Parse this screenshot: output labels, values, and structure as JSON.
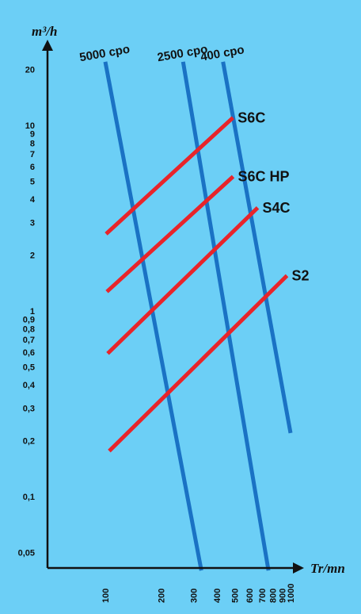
{
  "chart_data": {
    "type": "line",
    "title": "",
    "xlabel": "Tr/mn",
    "ylabel": "m³/h",
    "x_scale": "log",
    "y_scale": "log",
    "xlim": [
      100,
      1000
    ],
    "ylim": [
      0.04,
      25
    ],
    "x_ticks": [
      {
        "value": 100,
        "label": "100"
      },
      {
        "value": 200,
        "label": "200"
      },
      {
        "value": 300,
        "label": "300"
      },
      {
        "value": 400,
        "label": "400"
      },
      {
        "value": 500,
        "label": "500"
      },
      {
        "value": 600,
        "label": "600"
      },
      {
        "value": 700,
        "label": "700"
      },
      {
        "value": 800,
        "label": "800"
      },
      {
        "value": 900,
        "label": "900"
      },
      {
        "value": 1000,
        "label": "1000"
      }
    ],
    "y_ticks": [
      {
        "value": 20,
        "label": "20"
      },
      {
        "value": 10,
        "label": "10"
      },
      {
        "value": 9,
        "label": "9"
      },
      {
        "value": 8,
        "label": "8"
      },
      {
        "value": 7,
        "label": "7"
      },
      {
        "value": 6,
        "label": "6"
      },
      {
        "value": 5,
        "label": "5"
      },
      {
        "value": 4,
        "label": "4"
      },
      {
        "value": 3,
        "label": "3"
      },
      {
        "value": 2,
        "label": "2"
      },
      {
        "value": 1,
        "label": "1"
      },
      {
        "value": 0.9,
        "label": "0,9"
      },
      {
        "value": 0.8,
        "label": "0,8"
      },
      {
        "value": 0.7,
        "label": "0,7"
      },
      {
        "value": 0.6,
        "label": "0,6"
      },
      {
        "value": 0.5,
        "label": "0,5"
      },
      {
        "value": 0.4,
        "label": "0,4"
      },
      {
        "value": 0.3,
        "label": "0,3"
      },
      {
        "value": 0.2,
        "label": "0,2"
      },
      {
        "value": 0.1,
        "label": "0,1"
      },
      {
        "value": 0.05,
        "label": "0,05"
      }
    ],
    "grid": false,
    "series": [
      {
        "name": "S6C",
        "color": "#e8242a",
        "x": [
          101,
          489
        ],
        "y": [
          2.6,
          11.0
        ]
      },
      {
        "name": "S6C HP",
        "color": "#e8242a",
        "x": [
          102,
          490
        ],
        "y": [
          1.27,
          5.3
        ]
      },
      {
        "name": "S4C",
        "color": "#e8242a",
        "x": [
          103,
          665
        ],
        "y": [
          0.59,
          3.6
        ]
      },
      {
        "name": "S2",
        "color": "#e8242a",
        "x": [
          105,
          957
        ],
        "y": [
          0.176,
          1.55
        ]
      }
    ],
    "viscosity_lines": [
      {
        "name": "5000 cpo",
        "color": "#1a72c4",
        "x": [
          100,
          330
        ],
        "y": [
          22,
          0.04
        ]
      },
      {
        "name": "2500 cpo",
        "color": "#1a72c4",
        "x": [
          263,
          760
        ],
        "y": [
          22,
          0.04
        ]
      },
      {
        "name": "400 cpo",
        "color": "#1a72c4",
        "x": [
          432,
          1000
        ],
        "y": [
          22,
          0.22
        ]
      }
    ],
    "colors": {
      "background": "#6ccff6",
      "axis": "#111111"
    }
  }
}
